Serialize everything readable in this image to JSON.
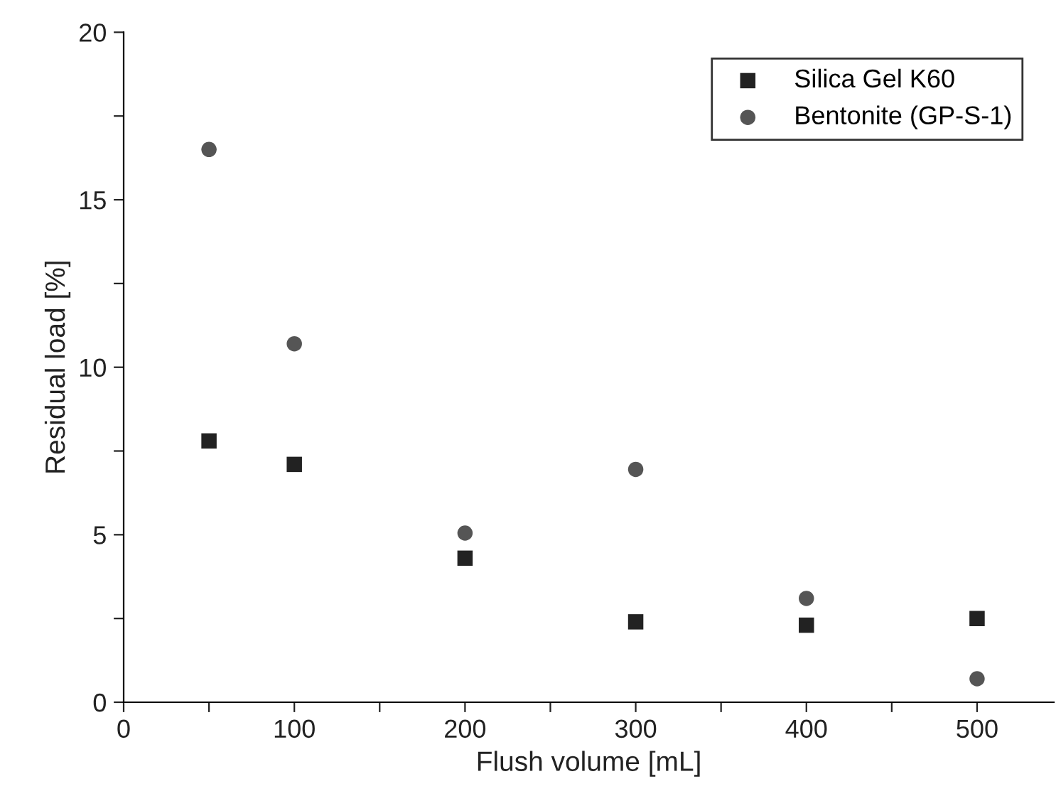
{
  "chart_data": {
    "type": "scatter",
    "xlabel": "Flush volume [mL]",
    "ylabel": "Residual load [%]",
    "series": [
      {
        "name": "Silica Gel K60",
        "color": "#222222",
        "marker": "square",
        "x": [
          50,
          100,
          200,
          300,
          400,
          500
        ],
        "values": [
          7.8,
          7.1,
          4.3,
          2.4,
          2.3,
          2.5
        ]
      },
      {
        "name": "Bentonite (GP-S-1)",
        "color": "#555555",
        "marker": "circle",
        "x": [
          50,
          100,
          200,
          300,
          400,
          500
        ],
        "values": [
          16.5,
          10.7,
          5.05,
          6.95,
          3.1,
          0.7
        ]
      }
    ],
    "xlim": [
      0,
      545
    ],
    "ylim": [
      0,
      20
    ],
    "xticks": [
      0,
      {
        "value": 50,
        "label": null
      },
      100,
      {
        "value": 150,
        "label": null
      },
      200,
      {
        "value": 250,
        "label": null
      },
      300,
      {
        "value": 350,
        "label": null
      },
      400,
      {
        "value": 450,
        "label": null
      },
      500
    ],
    "yticks": [
      0,
      {
        "value": 2.5,
        "label": null
      },
      5,
      {
        "value": 7.5,
        "label": null
      },
      10,
      {
        "value": 12.5,
        "label": null
      },
      15,
      {
        "value": 17.5,
        "label": null
      },
      20
    ],
    "grid": false,
    "legend": "top right"
  }
}
